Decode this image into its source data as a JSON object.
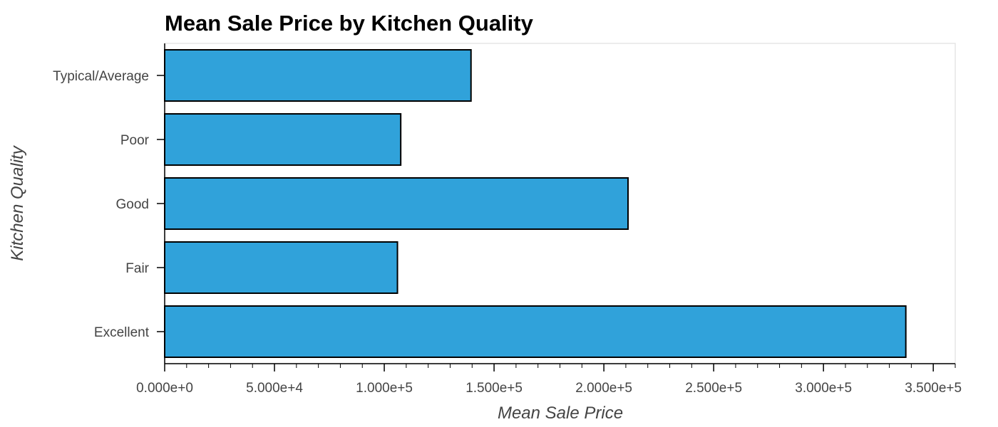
{
  "chart_data": {
    "type": "bar",
    "orientation": "horizontal",
    "title": "Mean Sale Price by Kitchen Quality",
    "xlabel": "Mean Sale Price",
    "ylabel": "Kitchen Quality",
    "categories": [
      "Typical/Average",
      "Poor",
      "Good",
      "Fair",
      "Excellent"
    ],
    "values": [
      139500,
      107500,
      211000,
      106000,
      337500
    ],
    "xlim": [
      0,
      360000
    ],
    "x_ticks": [
      0,
      50000,
      100000,
      150000,
      200000,
      250000,
      300000,
      350000
    ],
    "x_tick_labels": [
      "0.000e+0",
      "5.000e+4",
      "1.000e+5",
      "1.500e+5",
      "2.000e+5",
      "2.500e+5",
      "3.000e+5",
      "3.500e+5"
    ],
    "bar_color": "#30a2da",
    "grid": false,
    "legend": "none"
  }
}
